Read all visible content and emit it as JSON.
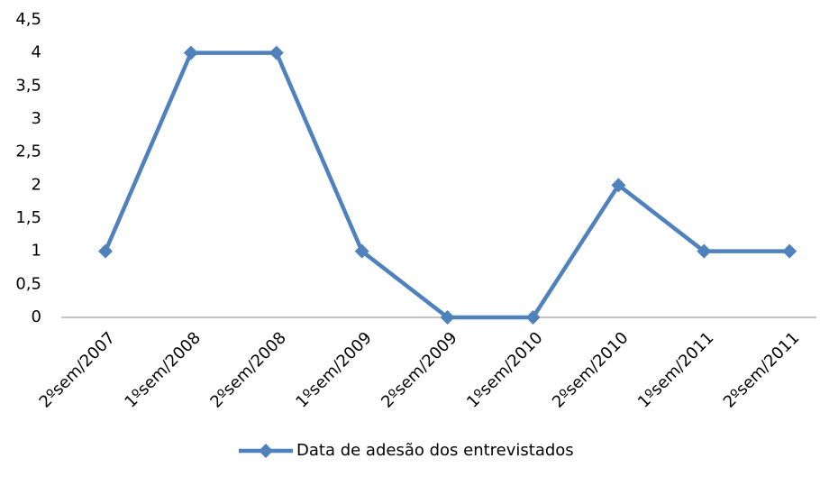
{
  "chart_data": {
    "type": "line",
    "categories": [
      "2ºsem/2007",
      "1ºsem/2008",
      "2ºsem/2008",
      "1ºsem/2009",
      "2ºsem/2009",
      "1ºsem/2010",
      "2ºsem/2010",
      "1ºsem/2011",
      "2ºsem/2011"
    ],
    "series": [
      {
        "name": "Data de adesão dos entrevistados",
        "color": "#4f81bd",
        "values": [
          1,
          4,
          4,
          1,
          0,
          0,
          2,
          1,
          1
        ]
      }
    ],
    "ylim": [
      0,
      4.5
    ],
    "yticks": [
      0,
      {
        "value": 0.5,
        "label": "0,5"
      },
      1,
      {
        "value": 1.5,
        "label": "1,5"
      },
      2,
      {
        "value": 2.5,
        "label": "2,5"
      },
      3,
      {
        "value": 3.5,
        "label": "3,5"
      },
      4,
      {
        "value": 4.5,
        "label": "4,5"
      }
    ],
    "grid": false,
    "legend": "bottom"
  }
}
